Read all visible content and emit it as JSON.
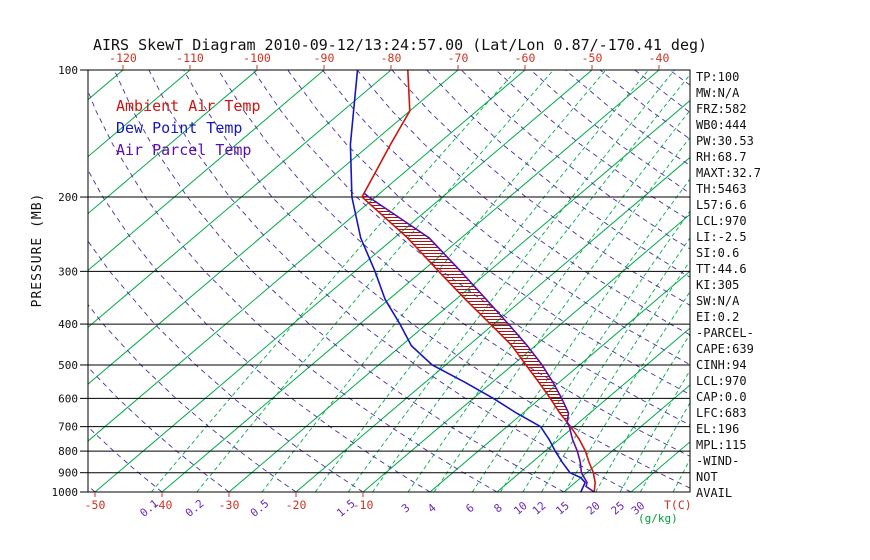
{
  "title": "AIRS SkewT Diagram 2010-09-12/13:24:57.00 (Lat/Lon 0.87/-170.41 deg)",
  "legend": {
    "items": [
      {
        "label": "Ambient Air Temp",
        "color": "#cc1711"
      },
      {
        "label": "Dew Point Temp",
        "color": "#1717bd"
      },
      {
        "label": "Air Parcel Temp",
        "color": "#5c0db0"
      }
    ]
  },
  "axes": {
    "ylabel": "PRESSURE (MB)",
    "temp_unit_label": "T(C)",
    "ratio_unit_label": "(g/kg)"
  },
  "stats_panel": {
    "lines": [
      "TP:100",
      "MW:N/A",
      "FRZ:582",
      "WB0:444",
      "PW:30.53",
      "RH:68.7",
      "MAXT:32.7",
      "TH:5463",
      "L57:6.6",
      "LCL:970",
      "LI:-2.5",
      "SI:0.6",
      "TT:44.6",
      "KI:305",
      "SW:N/A",
      "EI:0.2",
      "-PARCEL-",
      "CAPE:639",
      "CINH:94",
      "LCL:970",
      "CAP:0.0",
      "LFC:683",
      "EL:196",
      "MPL:115",
      "-WIND-",
      "NOT",
      "AVAIL"
    ]
  },
  "colors": {
    "ambient": "#cc1711",
    "dewpoint": "#1717bd",
    "parcel": "#5c0db0",
    "isotherm": "#00ab4a",
    "mixing_ratio": "#00ab4a",
    "dry_adiabat": "#4a2fa0",
    "temp_label": "#cc3322",
    "ratio_label": "#6a28b8",
    "unit_ratio_label": "#00a03c",
    "hatch": "#aa1111"
  },
  "chart_data": {
    "type": "line",
    "projection": "skew-t-log-p",
    "title": "AIRS SkewT Diagram 2010-09-12/13:24:57.00 (Lat/Lon 0.87/-170.41 deg)",
    "xlabel": "T(C)",
    "ylabel": "PRESSURE (MB)",
    "pressure_axis": {
      "scale": "log",
      "range_mb": [
        100,
        1000
      ],
      "ticks_mb": [
        100,
        200,
        300,
        400,
        500,
        600,
        700,
        800,
        900,
        1000
      ]
    },
    "temperature_axis": {
      "unit": "C",
      "skew_deg": 45,
      "top_labels_c": [
        -120,
        -110,
        -100,
        -90,
        -80,
        -70,
        -60,
        -50,
        -40
      ],
      "bottom_labels_c": [
        -50,
        -40,
        -30,
        -20,
        -10
      ]
    },
    "mixing_ratio_axis": {
      "unit": "g/kg",
      "labels_gkg": [
        0.1,
        0.2,
        0.5,
        1.5,
        3,
        4,
        6,
        8,
        10,
        12,
        15,
        20,
        25,
        30
      ],
      "lines_gkg": [
        0.1,
        0.2,
        0.5,
        1,
        1.5,
        2,
        3,
        4,
        6,
        8,
        10,
        12,
        15,
        20,
        25,
        30,
        40
      ]
    },
    "isotherms_c": {
      "min": -130,
      "max": 40,
      "step": 10
    },
    "dry_adiabats_c_at_1000mb": {
      "min": -50,
      "max": 190,
      "step": 10
    },
    "series": [
      {
        "name": "Ambient Air Temp",
        "color_key": "ambient",
        "points_mb_c": [
          [
            1000,
            24.5
          ],
          [
            950,
            23
          ],
          [
            925,
            22
          ],
          [
            900,
            21
          ],
          [
            850,
            18.5
          ],
          [
            800,
            16
          ],
          [
            750,
            13
          ],
          [
            700,
            9.5
          ],
          [
            650,
            5.5
          ],
          [
            600,
            1.5
          ],
          [
            550,
            -3
          ],
          [
            500,
            -8
          ],
          [
            450,
            -13.5
          ],
          [
            400,
            -20.5
          ],
          [
            350,
            -28.5
          ],
          [
            300,
            -37.5
          ],
          [
            250,
            -48
          ],
          [
            200,
            -62
          ],
          [
            150,
            -67
          ],
          [
            125,
            -70
          ],
          [
            100,
            -77.5
          ]
        ]
      },
      {
        "name": "Dew Point Temp",
        "color_key": "dewpoint",
        "points_mb_c": [
          [
            1000,
            22.5
          ],
          [
            950,
            21.5
          ],
          [
            925,
            20
          ],
          [
            900,
            17.5
          ],
          [
            850,
            14.5
          ],
          [
            800,
            11.5
          ],
          [
            750,
            8.5
          ],
          [
            700,
            5
          ],
          [
            650,
            -1
          ],
          [
            600,
            -7
          ],
          [
            550,
            -14
          ],
          [
            500,
            -22
          ],
          [
            450,
            -28.5
          ],
          [
            400,
            -34
          ],
          [
            350,
            -40.5
          ],
          [
            300,
            -47
          ],
          [
            250,
            -55
          ],
          [
            200,
            -63.5
          ],
          [
            150,
            -73
          ],
          [
            100,
            -85
          ]
        ]
      },
      {
        "name": "Air Parcel Temp",
        "color_key": "parcel",
        "points_mb_c": [
          [
            1000,
            24.5
          ],
          [
            970,
            22.3
          ],
          [
            950,
            21.8
          ],
          [
            900,
            19.2
          ],
          [
            850,
            17.2
          ],
          [
            800,
            14.8
          ],
          [
            750,
            12
          ],
          [
            700,
            9.3
          ],
          [
            683,
            8.2
          ],
          [
            650,
            6.8
          ],
          [
            600,
            3.2
          ],
          [
            550,
            -0.9
          ],
          [
            500,
            -5.6
          ],
          [
            450,
            -11.2
          ],
          [
            400,
            -17.8
          ],
          [
            350,
            -25.4
          ],
          [
            300,
            -34.2
          ],
          [
            250,
            -44.8
          ],
          [
            200,
            -61
          ],
          [
            196,
            -62.3
          ]
        ]
      }
    ],
    "cape_region": {
      "pressure_bottom_mb": 683,
      "pressure_top_mb": 196,
      "between_series": [
        "Air Parcel Temp",
        "Ambient Air Temp"
      ],
      "fill": "red-hatch"
    },
    "annotations": {
      "wind_barbs": "NOT AVAIL"
    }
  }
}
